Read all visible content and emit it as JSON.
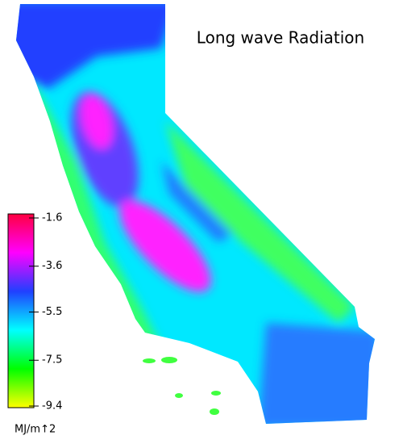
{
  "title": "Long wave Radiation",
  "colorbar": {
    "lim": [
      -9.4,
      -1.6
    ],
    "ticks": [
      -1.6,
      -3.6,
      -5.5,
      -7.5,
      -9.4
    ],
    "unit": "MJ/m↑2",
    "colors": [
      "#ffff00",
      "#00ff00",
      "#00ffff",
      "#2040ff",
      "#ff00ff",
      "#ff0040"
    ]
  }
}
